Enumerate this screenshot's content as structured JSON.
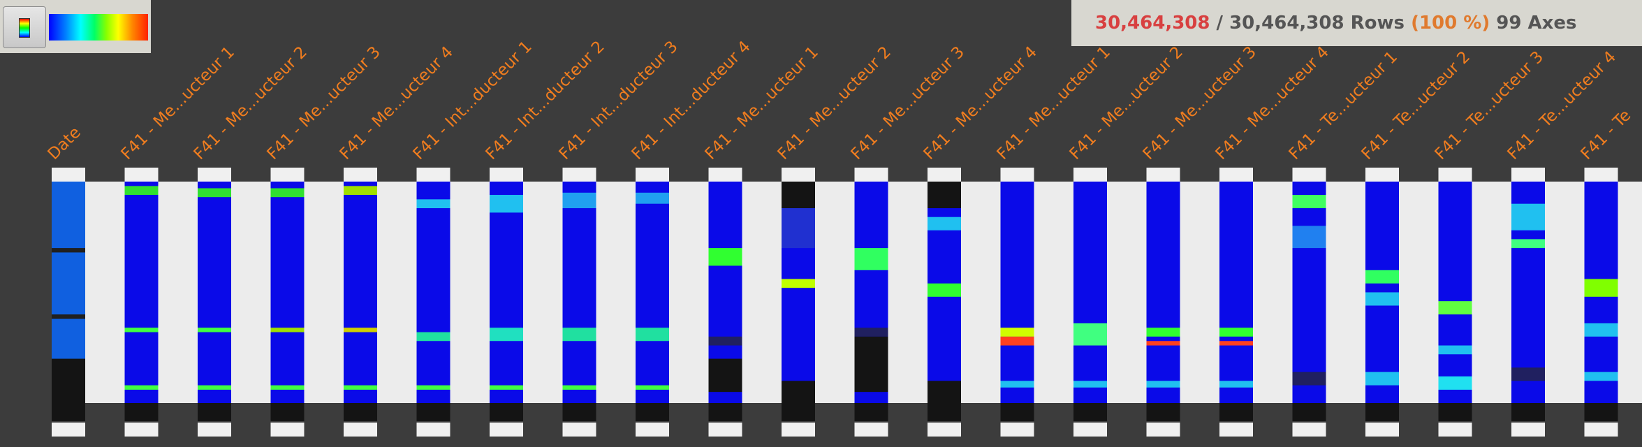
{
  "toolbar": {
    "colormap_button": "colormap-icon"
  },
  "stats": {
    "selected_rows": "30,464,308",
    "separator": " / ",
    "total_rows": "30,464,308",
    "rows_label": " Rows ",
    "percent": "(100 %)",
    "axes_count": " 99 Axes"
  },
  "colors": {
    "background": "#3c3c3c",
    "axis_label": "#f07d1f",
    "selected": "#d84040",
    "percent": "#e07a2e",
    "panel": "#d8d7d0",
    "inter_axis": "#ececec",
    "axis_base": "#0a0ae8"
  },
  "axes": [
    {
      "label": "Date",
      "bands": [
        [
          0.01,
          0.06,
          "#1060e0"
        ],
        [
          0.3,
          0.32,
          "#202020"
        ],
        [
          0.6,
          0.62,
          "#202020"
        ],
        [
          0.8,
          1.0,
          "#141414"
        ]
      ],
      "kind": "date"
    },
    {
      "label": "F41 - Me...ucteur 1",
      "bands": [
        [
          0.02,
          0.06,
          "#30e030"
        ],
        [
          0.66,
          0.68,
          "#40ff40"
        ],
        [
          0.92,
          0.94,
          "#40ff40"
        ]
      ]
    },
    {
      "label": "F41 - Me...ucteur 2",
      "bands": [
        [
          0.03,
          0.07,
          "#30e030"
        ],
        [
          0.66,
          0.68,
          "#40ff40"
        ],
        [
          0.92,
          0.94,
          "#40ff40"
        ]
      ]
    },
    {
      "label": "F41 - Me...ucteur 3",
      "bands": [
        [
          0.03,
          0.07,
          "#30e030"
        ],
        [
          0.66,
          0.68,
          "#a0e000"
        ],
        [
          0.92,
          0.94,
          "#40ff40"
        ]
      ]
    },
    {
      "label": "F41 - Me...ucteur 4",
      "bands": [
        [
          0.02,
          0.06,
          "#a0e000"
        ],
        [
          0.66,
          0.68,
          "#d0d000"
        ],
        [
          0.92,
          0.94,
          "#40ff40"
        ]
      ]
    },
    {
      "label": "F41 - Int...ducteur 1",
      "bands": [
        [
          0.08,
          0.12,
          "#20c0f0"
        ],
        [
          0.68,
          0.72,
          "#20e0a0"
        ],
        [
          0.92,
          0.94,
          "#40ff40"
        ]
      ]
    },
    {
      "label": "F41 - Int...ducteur 2",
      "bands": [
        [
          0.06,
          0.14,
          "#20c0f0"
        ],
        [
          0.66,
          0.72,
          "#20e0c0"
        ],
        [
          0.92,
          0.94,
          "#40ff40"
        ]
      ]
    },
    {
      "label": "F41 - Int...ducteur 3",
      "bands": [
        [
          0.05,
          0.12,
          "#20a0f0"
        ],
        [
          0.66,
          0.72,
          "#20e0a0"
        ],
        [
          0.92,
          0.94,
          "#40ff40"
        ]
      ]
    },
    {
      "label": "F41 - Int...ducteur 4",
      "bands": [
        [
          0.05,
          0.1,
          "#20a0f0"
        ],
        [
          0.66,
          0.72,
          "#20e0a0"
        ],
        [
          0.92,
          0.94,
          "#40ff40"
        ]
      ]
    },
    {
      "label": "F41 - Me...ucteur 1",
      "bands": [
        [
          0.3,
          0.38,
          "#30ff30"
        ],
        [
          0.7,
          0.74,
          "#202060"
        ],
        [
          0.8,
          0.95,
          "#141414"
        ]
      ]
    },
    {
      "label": "F41 - Me...ucteur 2",
      "bands": [
        [
          0.0,
          0.12,
          "#141414"
        ],
        [
          0.12,
          0.3,
          "#2030d0"
        ],
        [
          0.44,
          0.48,
          "#c0ff00"
        ],
        [
          0.9,
          1.0,
          "#141414"
        ]
      ]
    },
    {
      "label": "F41 - Me...ucteur 3",
      "bands": [
        [
          0.3,
          0.4,
          "#30ff60"
        ],
        [
          0.66,
          0.7,
          "#202060"
        ],
        [
          0.7,
          0.95,
          "#141414"
        ]
      ]
    },
    {
      "label": "F41 - Me...ucteur 4",
      "bands": [
        [
          0.0,
          0.12,
          "#141414"
        ],
        [
          0.16,
          0.22,
          "#20c0f0"
        ],
        [
          0.46,
          0.52,
          "#30ff30"
        ],
        [
          0.9,
          1.0,
          "#141414"
        ]
      ]
    },
    {
      "label": "F41 - Me...ucteur 1",
      "bands": [
        [
          0.7,
          0.74,
          "#ff4020"
        ],
        [
          0.66,
          0.7,
          "#d0ff00"
        ],
        [
          0.9,
          0.93,
          "#20c0f0"
        ]
      ]
    },
    {
      "label": "F41 - Me...ucteur 2",
      "bands": [
        [
          0.64,
          0.74,
          "#40ff80"
        ],
        [
          0.9,
          0.93,
          "#20c0f0"
        ]
      ]
    },
    {
      "label": "F41 - Me...ucteur 3",
      "bands": [
        [
          0.66,
          0.7,
          "#30ff30"
        ],
        [
          0.72,
          0.74,
          "#ff4020"
        ],
        [
          0.9,
          0.93,
          "#20c0f0"
        ]
      ]
    },
    {
      "label": "F41 - Me...ucteur 4",
      "bands": [
        [
          0.66,
          0.7,
          "#30ff30"
        ],
        [
          0.72,
          0.74,
          "#ff4020"
        ],
        [
          0.9,
          0.93,
          "#20c0f0"
        ]
      ]
    },
    {
      "label": "F41 - Te...ucteur 1",
      "bands": [
        [
          0.06,
          0.12,
          "#40ff60"
        ],
        [
          0.2,
          0.3,
          "#2080f0"
        ],
        [
          0.86,
          0.92,
          "#202060"
        ]
      ]
    },
    {
      "label": "F41 - Te...ucteur 2",
      "bands": [
        [
          0.4,
          0.46,
          "#30ff60"
        ],
        [
          0.5,
          0.56,
          "#20c0f0"
        ],
        [
          0.86,
          0.92,
          "#20c0f0"
        ]
      ]
    },
    {
      "label": "F41 - Te...ucteur 3",
      "bands": [
        [
          0.54,
          0.6,
          "#60ff40"
        ],
        [
          0.74,
          0.78,
          "#20c0f0"
        ],
        [
          0.88,
          0.94,
          "#20e0f0"
        ]
      ]
    },
    {
      "label": "F41 - Te...ucteur 4",
      "bands": [
        [
          0.1,
          0.22,
          "#20c0f0"
        ],
        [
          0.26,
          0.3,
          "#40ff80"
        ],
        [
          0.84,
          0.9,
          "#202060"
        ]
      ]
    },
    {
      "label": "F41 - Te",
      "bands": [
        [
          0.44,
          0.52,
          "#80ff00"
        ],
        [
          0.64,
          0.7,
          "#20c0f0"
        ],
        [
          0.86,
          0.9,
          "#20c0f0"
        ]
      ]
    }
  ]
}
